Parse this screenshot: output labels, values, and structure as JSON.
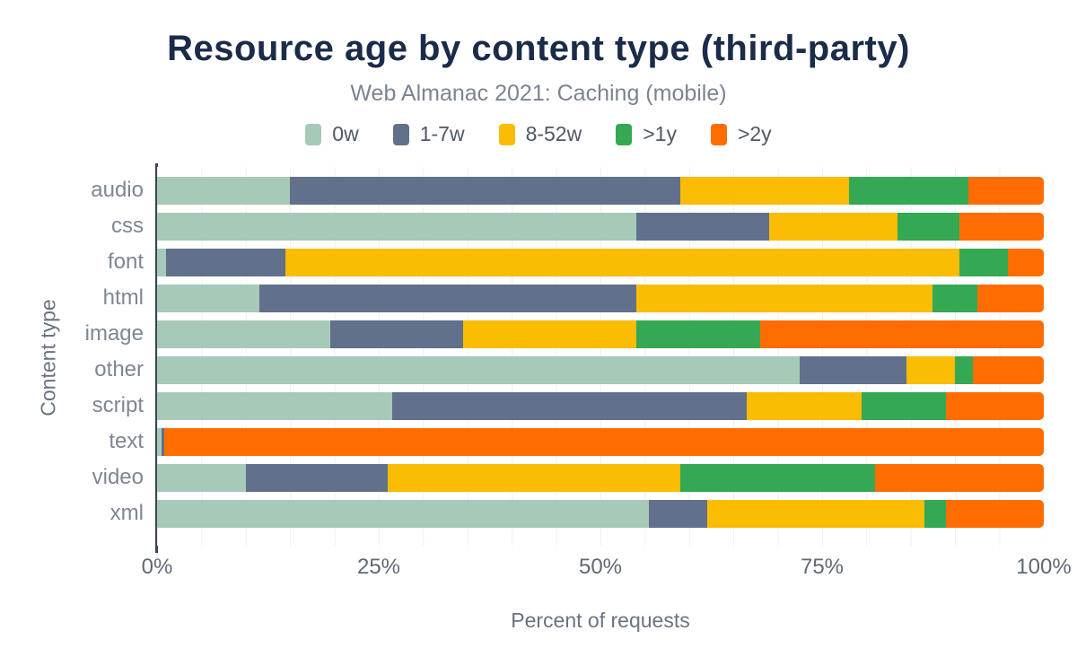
{
  "title": "Resource age by content type (third-party)",
  "subtitle": "Web Almanac 2021: Caching (mobile)",
  "chart_data": {
    "type": "bar",
    "stacked": true,
    "orientation": "horizontal",
    "title": "Resource age by content type (third-party)",
    "subtitle": "Web Almanac 2021: Caching (mobile)",
    "xlabel": "Percent of requests",
    "ylabel": "Content type",
    "xlim": [
      0,
      100
    ],
    "x_ticks": [
      "0%",
      "25%",
      "50%",
      "75%",
      "100%"
    ],
    "gridline_step_percent": 5,
    "grid": "vertical",
    "legend_position": "top",
    "units": "percent of requests",
    "categories": [
      "audio",
      "css",
      "font",
      "html",
      "image",
      "other",
      "script",
      "text",
      "video",
      "xml"
    ],
    "series": [
      {
        "name": "0w",
        "color": "#a7c9b8",
        "values": [
          15.0,
          54.0,
          1.0,
          11.5,
          19.5,
          72.5,
          26.5,
          0.5,
          10.0,
          55.5
        ]
      },
      {
        "name": "1-7w",
        "color": "#61708b",
        "values": [
          44.0,
          15.0,
          13.5,
          42.5,
          15.0,
          12.0,
          40.0,
          0.3,
          16.0,
          6.5
        ]
      },
      {
        "name": "8-52w",
        "color": "#fbbc04",
        "values": [
          19.0,
          14.5,
          76.0,
          33.5,
          19.5,
          5.5,
          13.0,
          0.0,
          33.0,
          24.5
        ]
      },
      {
        "name": ">1y",
        "color": "#34a853",
        "values": [
          13.5,
          7.0,
          5.5,
          5.0,
          14.0,
          2.0,
          9.5,
          0.0,
          22.0,
          2.5
        ]
      },
      {
        "name": ">2y",
        "color": "#ff6d00",
        "values": [
          8.5,
          9.5,
          4.0,
          7.5,
          32.0,
          8.0,
          11.0,
          99.2,
          19.0,
          11.0
        ]
      }
    ],
    "colors": {
      "title": "#1b2b4a",
      "subtitle": "#7b8492",
      "axis_line": "#3a4457",
      "gridline": "#edeff3",
      "tick_label": "#5f6875",
      "category_label": "#7d8694"
    }
  }
}
